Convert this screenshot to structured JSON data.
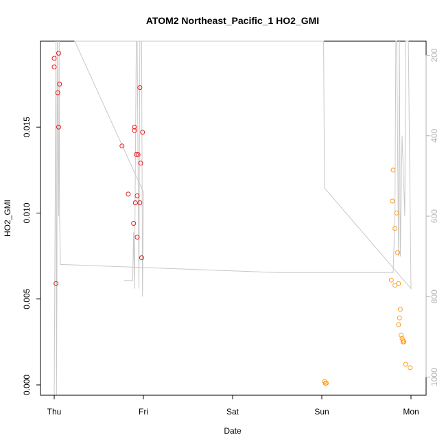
{
  "chart_data": {
    "type": "scatter",
    "title": "ATOM2 Northeast_Pacific_1 HO2_GMI",
    "xlabel": "Date",
    "ylabel": "HO2_GMI",
    "x_ticks": [
      "Thu",
      "Fri",
      "Sat",
      "Sun",
      "Mon"
    ],
    "x_range_days": [
      -0.3,
      4.15
    ],
    "ylim": [
      -0.0006,
      0.02
    ],
    "y_ticks": [
      "0.000",
      "0.005",
      "0.010",
      "0.015"
    ],
    "y_tick_values": [
      0.0,
      0.005,
      0.01,
      0.015
    ],
    "y2_ticks": [
      "200",
      "400",
      "600",
      "800",
      "1000"
    ],
    "y2_tick_values": [
      200,
      400,
      600,
      800,
      1000
    ],
    "y2_range": [
      165,
      1045
    ],
    "colors": {
      "red": "#e41a1c",
      "orange": "#ff9a1a",
      "gray": "#c8c8c8"
    },
    "series": [
      {
        "color": "red",
        "points": [
          [
            0.0,
            0.019
          ],
          [
            0.05,
            0.0193
          ],
          [
            0.0,
            0.0185
          ],
          [
            0.06,
            0.0175
          ],
          [
            0.04,
            0.017
          ],
          [
            0.05,
            0.015
          ],
          [
            0.02,
            0.0059
          ],
          [
            0.96,
            0.0173
          ],
          [
            0.9,
            0.015
          ],
          [
            0.9,
            0.0148
          ],
          [
            0.99,
            0.0147
          ],
          [
            0.76,
            0.0139
          ],
          [
            0.92,
            0.0134
          ],
          [
            0.94,
            0.0134
          ],
          [
            0.97,
            0.0129
          ],
          [
            0.83,
            0.0111
          ],
          [
            0.93,
            0.011
          ],
          [
            0.91,
            0.0106
          ],
          [
            0.96,
            0.0106
          ],
          [
            0.89,
            0.0094
          ],
          [
            0.93,
            0.0086
          ],
          [
            0.98,
            0.0074
          ]
        ]
      },
      {
        "color": "orange",
        "points": [
          [
            3.03,
            0.0002
          ],
          [
            3.04,
            0.0001
          ],
          [
            3.05,
            0.0001
          ],
          [
            3.8,
            0.0125
          ],
          [
            3.79,
            0.0107
          ],
          [
            3.84,
            0.01
          ],
          [
            3.82,
            0.0091
          ],
          [
            3.85,
            0.0077
          ],
          [
            3.78,
            0.0061
          ],
          [
            3.82,
            0.0058
          ],
          [
            3.86,
            0.0059
          ],
          [
            3.88,
            0.0044
          ],
          [
            3.87,
            0.0039
          ],
          [
            3.86,
            0.0035
          ],
          [
            3.89,
            0.0029
          ],
          [
            3.9,
            0.0027
          ],
          [
            3.91,
            0.0026
          ],
          [
            3.92,
            0.0025
          ],
          [
            3.91,
            0.0025
          ],
          [
            3.94,
            0.0012
          ],
          [
            3.99,
            0.001
          ]
        ]
      }
    ],
    "altitude_profile": [
      [
        0.0,
        1045
      ],
      [
        0.02,
        165
      ],
      [
        0.025,
        1045
      ],
      [
        0.03,
        820
      ],
      [
        0.035,
        165
      ],
      [
        0.05,
        600
      ],
      [
        0.055,
        165
      ],
      [
        0.06,
        600
      ],
      [
        0.07,
        720
      ],
      [
        2.5,
        740
      ],
      [
        3.8,
        740
      ],
      [
        3.82,
        600
      ],
      [
        3.83,
        165
      ],
      [
        3.84,
        165
      ],
      [
        3.86,
        700
      ],
      [
        3.87,
        165
      ],
      [
        3.88,
        700
      ],
      [
        3.9,
        400
      ],
      [
        3.93,
        600
      ],
      [
        3.94,
        165
      ],
      [
        3.95,
        165
      ],
      [
        3.97,
        165
      ],
      [
        4.0,
        780
      ],
      [
        3.03,
        530
      ],
      [
        3.02,
        165
      ],
      [
        3.0,
        165
      ],
      [
        2.9,
        165
      ],
      [
        0.25,
        165
      ],
      [
        0.23,
        165
      ],
      [
        1.0,
        540
      ],
      [
        0.99,
        800
      ],
      [
        0.98,
        165
      ],
      [
        0.96,
        165
      ],
      [
        0.95,
        780
      ],
      [
        0.93,
        165
      ],
      [
        0.92,
        165
      ],
      [
        0.9,
        780
      ],
      [
        0.89,
        640
      ],
      [
        0.88,
        760
      ],
      [
        0.78,
        760
      ]
    ]
  }
}
